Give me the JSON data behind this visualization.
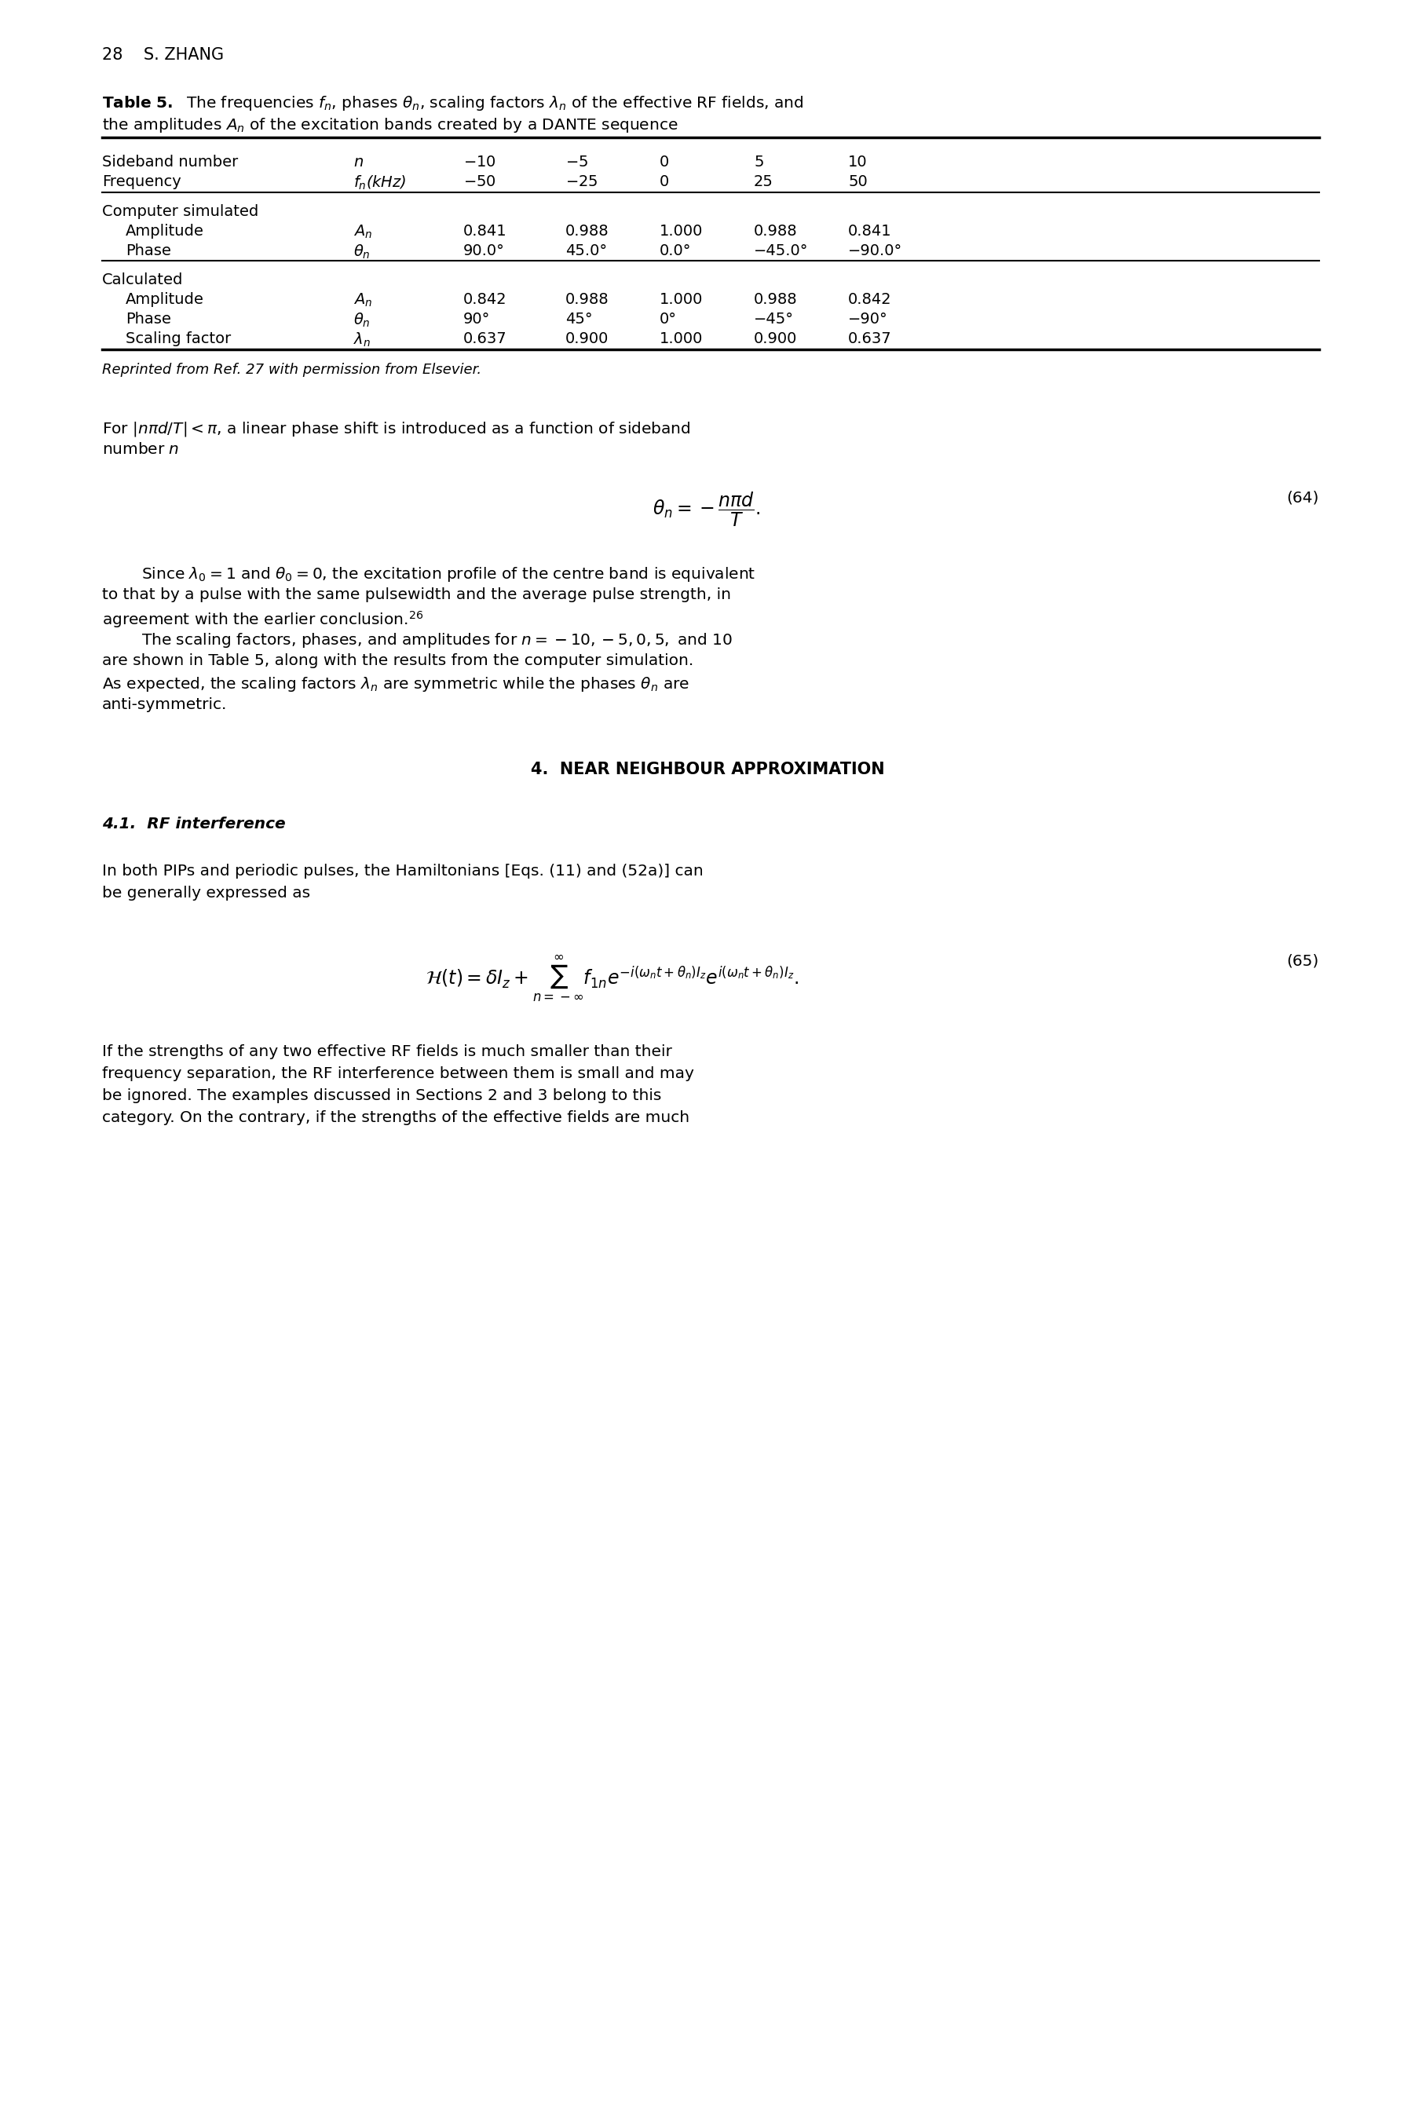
{
  "page_number": "28",
  "author": "S. ZHANG",
  "table_caption": "Table 5.",
  "table_caption_text": "  The frequencies $f_n$, phases $\\theta_n$, scaling factors $\\lambda_n$ of the effective RF fields, and the amplitudes $A_n$ of the excitation bands created by a DANTE sequence",
  "table_header_row1": [
    "Sideband number",
    "n",
    "−10",
    "−5",
    "0",
    "5",
    "10"
  ],
  "table_header_row2": [
    "Frequency",
    "$f_n$(kHz)",
    "−50",
    "−25",
    "0",
    "25",
    "50"
  ],
  "table_section1_header": "Computer simulated",
  "table_section1_rows": [
    [
      "Amplitude",
      "$A_n$",
      "0.841",
      "0.988",
      "1.000",
      "0.988",
      "0.841"
    ],
    [
      "Phase",
      "$\\theta_n$",
      "90.0°",
      "45.0°",
      "0.0°",
      "−45.0°",
      "−90.0°"
    ]
  ],
  "table_section2_header": "Calculated",
  "table_section2_rows": [
    [
      "Amplitude",
      "$A_n$",
      "0.842",
      "0.988",
      "1.000",
      "0.988",
      "0.842"
    ],
    [
      "Phase",
      "$\\theta_n$",
      "90°",
      "45°",
      "0°",
      "−45°",
      "−90°"
    ],
    [
      "Scaling factor",
      "$\\lambda_n$",
      "0.637",
      "0.900",
      "1.000",
      "0.900",
      "0.637"
    ]
  ],
  "table_footnote": "Reprinted from Ref. 27 with permission from Elsevier.",
  "para1": "For $|n\\pi d/T| < \\pi$, a linear phase shift is introduced as a function of sideband number $n$",
  "equation64_label": "(64)",
  "equation64": "$\\theta_n = -\\dfrac{n\\pi d}{T}.$",
  "para2_indent": "Since $\\lambda_0 = 1$ and $\\theta_0 = 0$, the excitation profile of the centre band is equivalent to that by a pulse with the same pulsewidth and the average pulse strength, in agreement with the earlier conclusion.",
  "para2_superscript": "26",
  "para3": "The scaling factors, phases, and amplitudes for $n = -10, -5, 0, 5,$ and $10$ are shown in Table 5, along with the results from the computer simulation. As expected, the scaling factors $\\lambda_n$ are symmetric while the phases $\\theta_n$ are anti-symmetric.",
  "section4_title": "4.  NEAR NEIGHBOUR APPROXIMATION",
  "section41_title": "4.1.  RF interference",
  "para4": "In both PIPs and periodic pulses, the Hamiltonians [Eqs. (11) and (52a)] can be generally expressed as",
  "equation65_label": "(65)",
  "equation65": "$\\mathcal{H}(t) = \\delta I_z + \\sum_{n=-\\infty}^{\\infty} f_{1n} e^{-i(\\omega_n t + \\theta_n)I_z} e^{i(\\omega_n t + \\theta_n)I_z}.$",
  "para5": "If the strengths of any two effective RF fields is much smaller than their frequency separation, the RF interference between them is small and may be ignored. The examples discussed in Sections 2 and 3 belong to this category. On the contrary, if the strengths of the effective fields are much",
  "bg_color": "#ffffff",
  "text_color": "#000000"
}
